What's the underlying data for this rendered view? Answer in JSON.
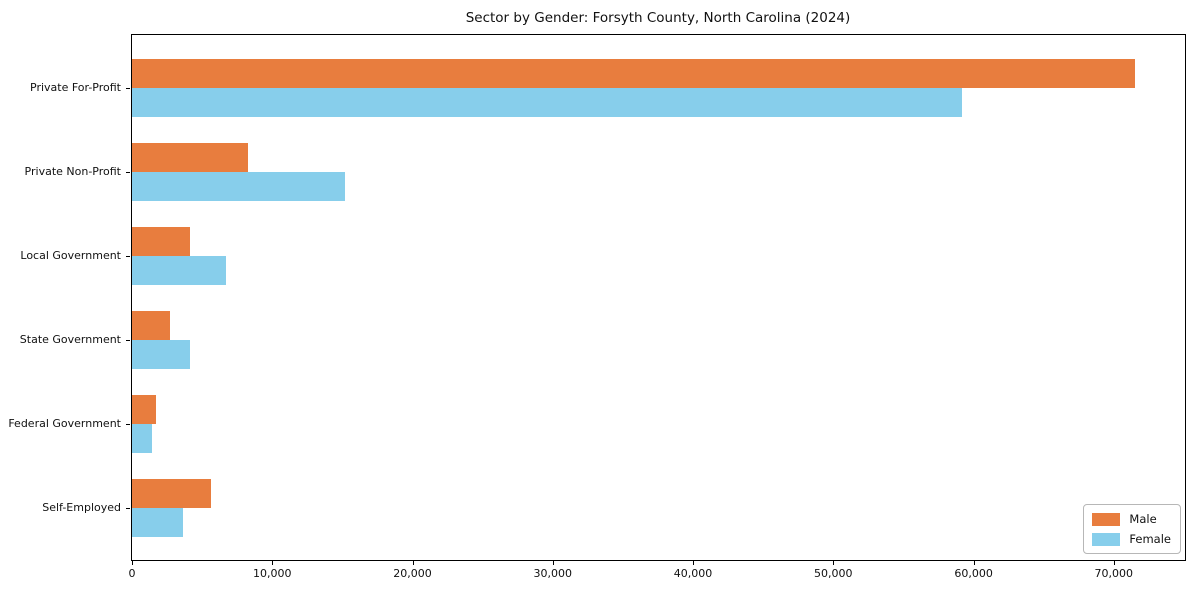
{
  "chart_data": {
    "type": "bar",
    "orientation": "horizontal",
    "title": "Sector by Gender: Forsyth County, North Carolina (2024)",
    "xlabel": "",
    "ylabel": "",
    "categories": [
      "Private For-Profit",
      "Private Non-Profit",
      "Local Government",
      "State Government",
      "Federal Government",
      "Self-Employed"
    ],
    "series": [
      {
        "name": "Male",
        "color": "#e87d3e",
        "values": [
          71500,
          8300,
          4100,
          2700,
          1700,
          5600
        ]
      },
      {
        "name": "Female",
        "color": "#87ceeb",
        "values": [
          59200,
          15200,
          6700,
          4100,
          1400,
          3600
        ]
      }
    ],
    "xlim": [
      0,
      75075
    ],
    "x_ticks": [
      0,
      10000,
      20000,
      30000,
      40000,
      50000,
      60000,
      70000
    ],
    "x_tick_labels": [
      "0",
      "10,000",
      "20,000",
      "30,000",
      "40,000",
      "50,000",
      "60,000",
      "70,000"
    ],
    "grid": false,
    "legend_position": "lower right",
    "plot_border_color": "#000000",
    "background_color": "#ffffff"
  }
}
